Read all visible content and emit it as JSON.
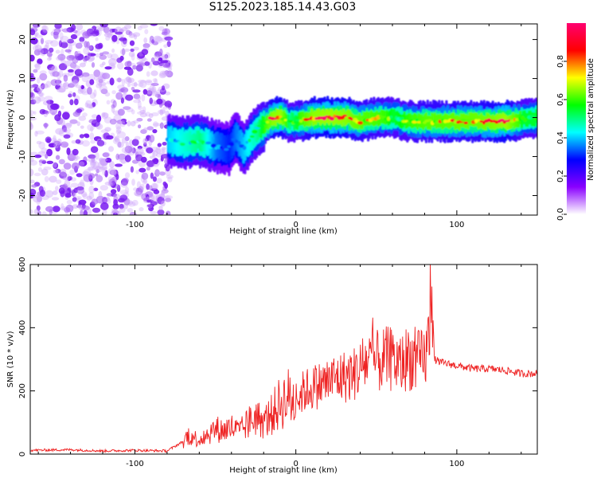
{
  "figure_title": "S125.2023.185.14.43.G03",
  "chart_data": [
    {
      "type": "heatmap",
      "xlabel": "Height of straight line (km)",
      "ylabel": "Frequency (Hz)",
      "xlim": [
        -165,
        150
      ],
      "ylim": [
        -25,
        24
      ],
      "xticks": [
        -100,
        0,
        100
      ],
      "yticks": [
        -20,
        -10,
        0,
        10,
        20
      ],
      "colorbar": {
        "label": "Normalized spectral amplitude",
        "range": [
          0,
          1
        ],
        "ticks": [
          0.0,
          0.2,
          0.4,
          0.6,
          0.8
        ],
        "colormap": [
          "#ffffff",
          "#8a00ff",
          "#0000ff",
          "#00ffff",
          "#00ff00",
          "#ffff00",
          "#ff0000",
          "#ff0070"
        ]
      },
      "noise_region_x": [
        -165,
        -80
      ],
      "ridge": {
        "x": [
          -80,
          -70,
          -60,
          -50,
          -42,
          -38,
          -33,
          -28,
          -24,
          -20,
          -15,
          -10,
          -5,
          0,
          10,
          20,
          30,
          40,
          50,
          60,
          70,
          80,
          90,
          100,
          110,
          120,
          130,
          140,
          150
        ],
        "freq": [
          -6,
          -6.5,
          -6,
          -7.5,
          -8,
          -5,
          -8,
          -5,
          -3,
          -2,
          0,
          0,
          -1,
          -1,
          0,
          0,
          0,
          -1,
          0,
          0,
          -1,
          -1,
          -1,
          -1,
          -1,
          -1,
          -1,
          -0.5,
          0
        ],
        "amplitude": [
          0.4,
          0.45,
          0.5,
          0.35,
          0.3,
          0.35,
          0.4,
          0.45,
          0.5,
          0.6,
          0.85,
          0.9,
          0.5,
          0.55,
          0.85,
          0.9,
          0.85,
          0.7,
          0.65,
          0.55,
          0.6,
          0.7,
          0.7,
          0.75,
          0.75,
          0.8,
          0.9,
          0.55,
          0.55
        ]
      }
    },
    {
      "type": "line",
      "xlabel": "Height of straight line (km)",
      "ylabel": "SNR (10 * v/v)",
      "xlim": [
        -165,
        150
      ],
      "ylim": [
        0,
        600
      ],
      "xticks": [
        -100,
        0,
        100
      ],
      "yticks": [
        0,
        200,
        400,
        600
      ],
      "grid": false,
      "series": [
        {
          "color": "#ee2222",
          "x": [
            -165,
            -140,
            -120,
            -100,
            -80,
            -70,
            -67,
            -60,
            -50,
            -45,
            -40,
            -35,
            -30,
            -25,
            -20,
            -15,
            -10,
            -5,
            0,
            5,
            10,
            15,
            20,
            25,
            30,
            35,
            40,
            45,
            50,
            55,
            60,
            65,
            70,
            75,
            80,
            83,
            84,
            86,
            90,
            100,
            110,
            120,
            130,
            140,
            150
          ],
          "y": [
            12,
            14,
            10,
            12,
            10,
            40,
            60,
            45,
            80,
            75,
            85,
            70,
            95,
            120,
            100,
            125,
            160,
            180,
            165,
            200,
            210,
            220,
            230,
            240,
            245,
            250,
            270,
            300,
            290,
            300,
            300,
            280,
            310,
            290,
            300,
            370,
            630,
            300,
            290,
            280,
            270,
            270,
            265,
            255,
            255
          ]
        }
      ]
    }
  ]
}
